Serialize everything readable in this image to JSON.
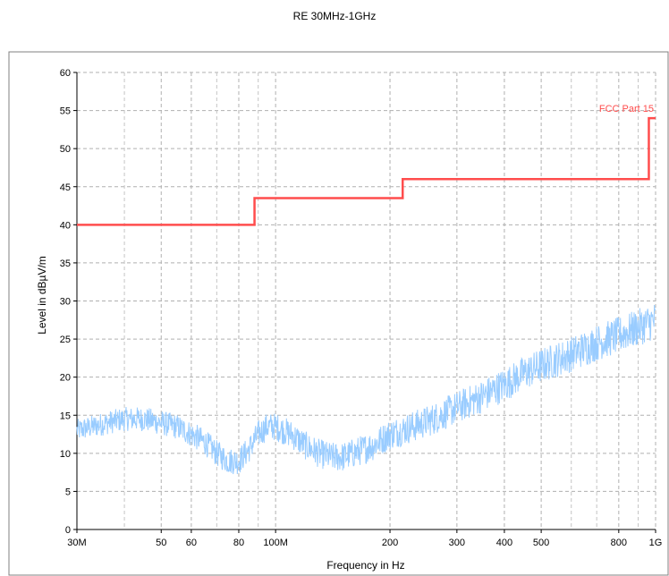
{
  "chart_data": {
    "type": "line",
    "title": "RE 30MHz-1GHz",
    "xlabel": "Frequency in Hz",
    "ylabel": "Level in dBµV/m",
    "x_scale": "log",
    "xlim": [
      30000000,
      1000000000
    ],
    "ylim": [
      0,
      60
    ],
    "grid": true,
    "x_ticks": [
      {
        "value": 30000000,
        "label": "30M"
      },
      {
        "value": 50000000,
        "label": "50"
      },
      {
        "value": 60000000,
        "label": "60"
      },
      {
        "value": 80000000,
        "label": "80"
      },
      {
        "value": 100000000,
        "label": "100M"
      },
      {
        "value": 200000000,
        "label": "200"
      },
      {
        "value": 300000000,
        "label": "300"
      },
      {
        "value": 400000000,
        "label": "400"
      },
      {
        "value": 500000000,
        "label": "500"
      },
      {
        "value": 800000000,
        "label": "800"
      },
      {
        "value": 1000000000,
        "label": "1G"
      }
    ],
    "x_minor_grid": [
      40000000,
      70000000,
      90000000,
      600000000,
      700000000,
      900000000
    ],
    "y_ticks": [
      0,
      5,
      10,
      15,
      20,
      25,
      30,
      35,
      40,
      45,
      50,
      55,
      60
    ],
    "series": [
      {
        "name": "FCC Part 15",
        "color": "#ff4d4d",
        "kind": "limit-step",
        "x": [
          30000000,
          88000000,
          88000000,
          216000000,
          216000000,
          960000000,
          960000000,
          1000000000
        ],
        "y": [
          40,
          40,
          43.5,
          43.5,
          46,
          46,
          54,
          54
        ]
      },
      {
        "name": "",
        "color": "#99ccff",
        "kind": "measurement",
        "x": [
          30000000,
          33000000,
          36000000,
          40000000,
          45000000,
          50000000,
          55000000,
          60000000,
          65000000,
          70000000,
          75000000,
          80000000,
          85000000,
          90000000,
          95000000,
          100000000,
          110000000,
          120000000,
          130000000,
          140000000,
          150000000,
          160000000,
          180000000,
          200000000,
          230000000,
          260000000,
          300000000,
          350000000,
          400000000,
          450000000,
          500000000,
          600000000,
          700000000,
          800000000,
          900000000,
          1000000000
        ],
        "y": [
          13,
          13.5,
          14,
          14.5,
          14.5,
          14,
          13.5,
          12.5,
          11.5,
          10,
          9,
          9,
          10.5,
          12.5,
          13.5,
          13.5,
          12.5,
          11,
          10,
          9.5,
          9.5,
          10,
          11,
          12.5,
          13.5,
          14.5,
          16,
          17.5,
          19,
          20.5,
          21.5,
          23,
          24.5,
          25.5,
          26.5,
          27.5
        ],
        "noise_band": 2.5
      }
    ]
  }
}
